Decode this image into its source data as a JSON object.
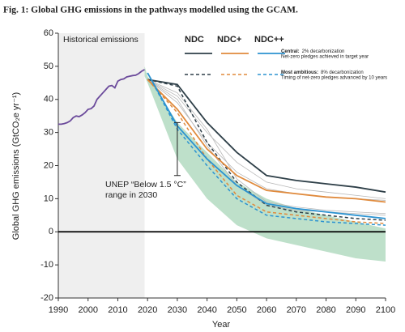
{
  "chart_data": {
    "type": "line",
    "title": "Fig. 1: Global GHG emissions in the pathways modelled using the GCAM.",
    "xlabel": "Year",
    "ylabel": "Global GHG emissions (GtCO₂e yr⁻¹)",
    "xlim": [
      1990,
      2100
    ],
    "xticks": [
      1990,
      2000,
      2010,
      2020,
      2030,
      2040,
      2050,
      2060,
      2070,
      2080,
      2090,
      2100
    ],
    "ylim": [
      -20,
      60
    ],
    "yticks": [
      -20,
      -10,
      0,
      10,
      20,
      30,
      40,
      50,
      60
    ],
    "historical": {
      "label": "Historical emissions",
      "color": "#6b4a9b",
      "span": [
        1990,
        2019
      ],
      "x": [
        1990,
        1991,
        1992,
        1993,
        1994,
        1995,
        1996,
        1997,
        1998,
        1999,
        2000,
        2001,
        2002,
        2003,
        2004,
        2005,
        2006,
        2007,
        2008,
        2009,
        2010,
        2011,
        2012,
        2013,
        2014,
        2015,
        2016,
        2017,
        2018,
        2019
      ],
      "values": [
        32.5,
        32.5,
        32.7,
        33,
        33.5,
        34.5,
        35,
        34.8,
        35.3,
        36,
        37,
        37.2,
        38,
        40,
        41,
        42,
        43,
        44,
        44.2,
        43.5,
        45.5,
        46,
        46.2,
        46.8,
        47,
        47.2,
        47.3,
        47.8,
        48.5,
        49
      ]
    },
    "range_band": {
      "color": "#a8d5b8",
      "x": [
        2019,
        2020,
        2030,
        2040,
        2050,
        2060,
        2070,
        2080,
        2090,
        2100
      ],
      "upper": [
        50,
        47,
        33,
        24,
        15,
        10,
        7,
        5,
        3,
        1
      ],
      "lower": [
        47,
        45,
        22,
        10,
        2,
        -2,
        -4,
        -6,
        -8,
        -9
      ]
    },
    "range_bar": {
      "label": [
        "UNEP “Below 1.5 °C”",
        "range in 2030"
      ],
      "x": 2030,
      "values": [
        17,
        33
      ]
    },
    "other_pathways": {
      "color": "#b8b8b8",
      "x": [
        2020,
        2030,
        2040,
        2050,
        2060,
        2070,
        2080,
        2090,
        2100
      ],
      "series": [
        [
          46,
          41,
          30,
          21,
          15,
          13,
          12,
          11,
          10
        ],
        [
          46,
          39,
          27,
          18,
          13,
          11.5,
          10.5,
          10,
          9.5
        ],
        [
          46,
          42,
          31,
          16,
          9,
          7.5,
          6.5,
          6,
          5.5
        ],
        [
          46,
          40,
          26,
          14,
          8,
          6.5,
          6,
          5.5,
          5
        ]
      ]
    },
    "x": [
      2020,
      2030,
      2040,
      2050,
      2060,
      2070,
      2080,
      2090,
      2100
    ],
    "pathways": [
      {
        "name": "NDC",
        "color": "#2e3f48",
        "central": [
          46,
          44.5,
          33,
          24,
          17,
          15.5,
          14.5,
          13.5,
          12
        ],
        "ambitious": [
          46,
          44,
          27,
          15,
          8,
          6,
          5,
          4,
          3.5
        ]
      },
      {
        "name": "NDC+",
        "color": "#e08a3c",
        "central": [
          46,
          37,
          25,
          17,
          12.5,
          11.5,
          10.5,
          10,
          9
        ],
        "ambitious": [
          46,
          36,
          22,
          11,
          6,
          5,
          4,
          3,
          2.5
        ]
      },
      {
        "name": "NDC++",
        "color": "#2b93d1",
        "central": [
          48,
          32,
          22,
          14,
          8.5,
          7,
          6,
          5,
          4
        ],
        "ambitious": [
          48,
          31,
          20,
          10,
          5,
          4,
          3,
          2.5,
          2
        ]
      }
    ],
    "legend": {
      "central": [
        "Central:",
        "2% decarbonization",
        "Net-zero pledges achieved in target year"
      ],
      "ambitious": [
        "Most ambitious:",
        "8% decarbonization",
        "Timing of net-zero pledges advanced by 10 years"
      ]
    }
  }
}
